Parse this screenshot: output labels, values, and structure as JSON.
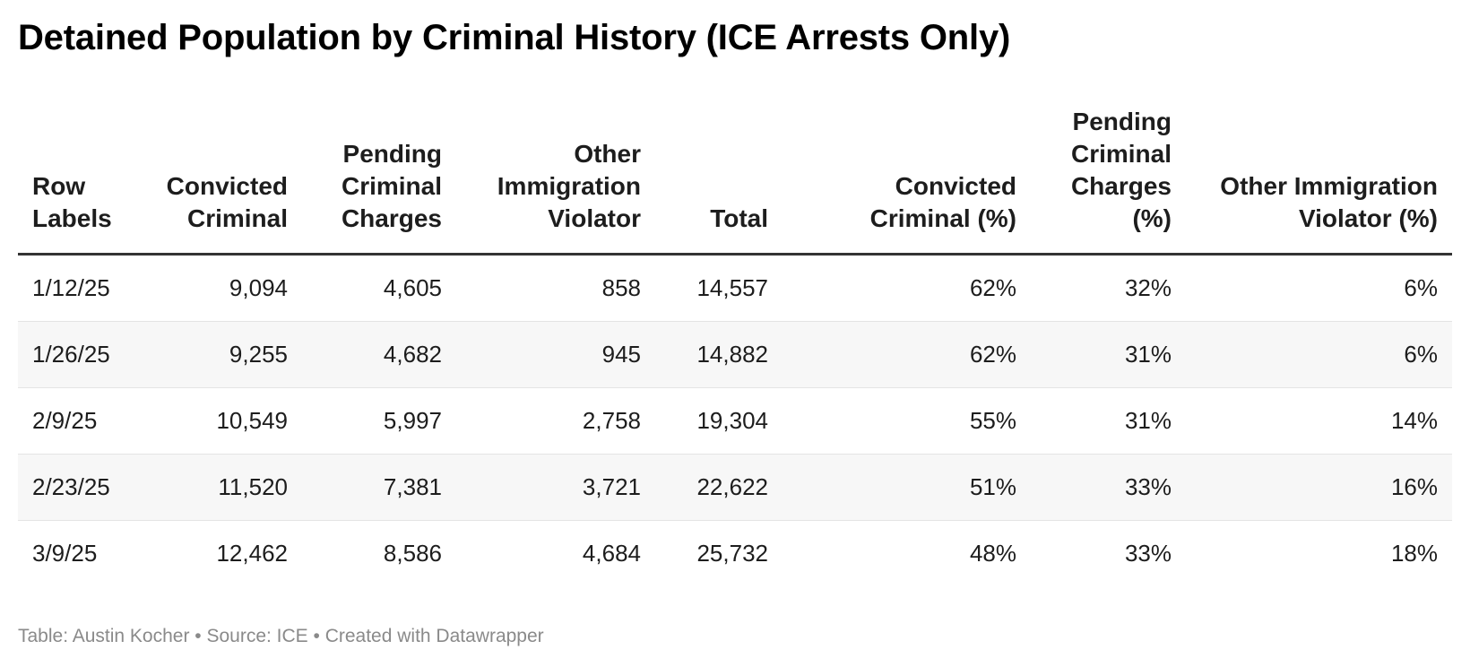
{
  "title": "Detained Population by Criminal History (ICE Arrests Only)",
  "chart_data": {
    "type": "table",
    "title": "Detained Population by Criminal History (ICE Arrests Only)",
    "columns": [
      {
        "label": "Row Labels",
        "align": "left"
      },
      {
        "label": "Convicted Criminal",
        "align": "right"
      },
      {
        "label": "Pending Criminal Charges",
        "align": "right"
      },
      {
        "label": "Other Immigration Violator",
        "align": "right"
      },
      {
        "label": "Total",
        "align": "right"
      },
      {
        "label": "Convicted Criminal (%)",
        "align": "right"
      },
      {
        "label": "Pending Criminal Charges (%)",
        "align": "right"
      },
      {
        "label": "Other Immigration Violator (%)",
        "align": "right"
      }
    ],
    "rows": [
      [
        "1/12/25",
        "9,094",
        "4,605",
        "858",
        "14,557",
        "62%",
        "32%",
        "6%"
      ],
      [
        "1/26/25",
        "9,255",
        "4,682",
        "945",
        "14,882",
        "62%",
        "31%",
        "6%"
      ],
      [
        "2/9/25",
        "10,549",
        "5,997",
        "2,758",
        "19,304",
        "55%",
        "31%",
        "14%"
      ],
      [
        "2/23/25",
        "11,520",
        "7,381",
        "3,721",
        "22,622",
        "51%",
        "33%",
        "16%"
      ],
      [
        "3/9/25",
        "12,462",
        "8,586",
        "4,684",
        "25,732",
        "48%",
        "33%",
        "18%"
      ]
    ]
  },
  "footer": "Table: Austin Kocher • Source: ICE • Created with Datawrapper",
  "colors": {
    "header_rule": "#333333",
    "row_stripe": "#f7f7f7",
    "row_divider": "#e4e4e4",
    "footer_text": "#8a8a8a"
  }
}
